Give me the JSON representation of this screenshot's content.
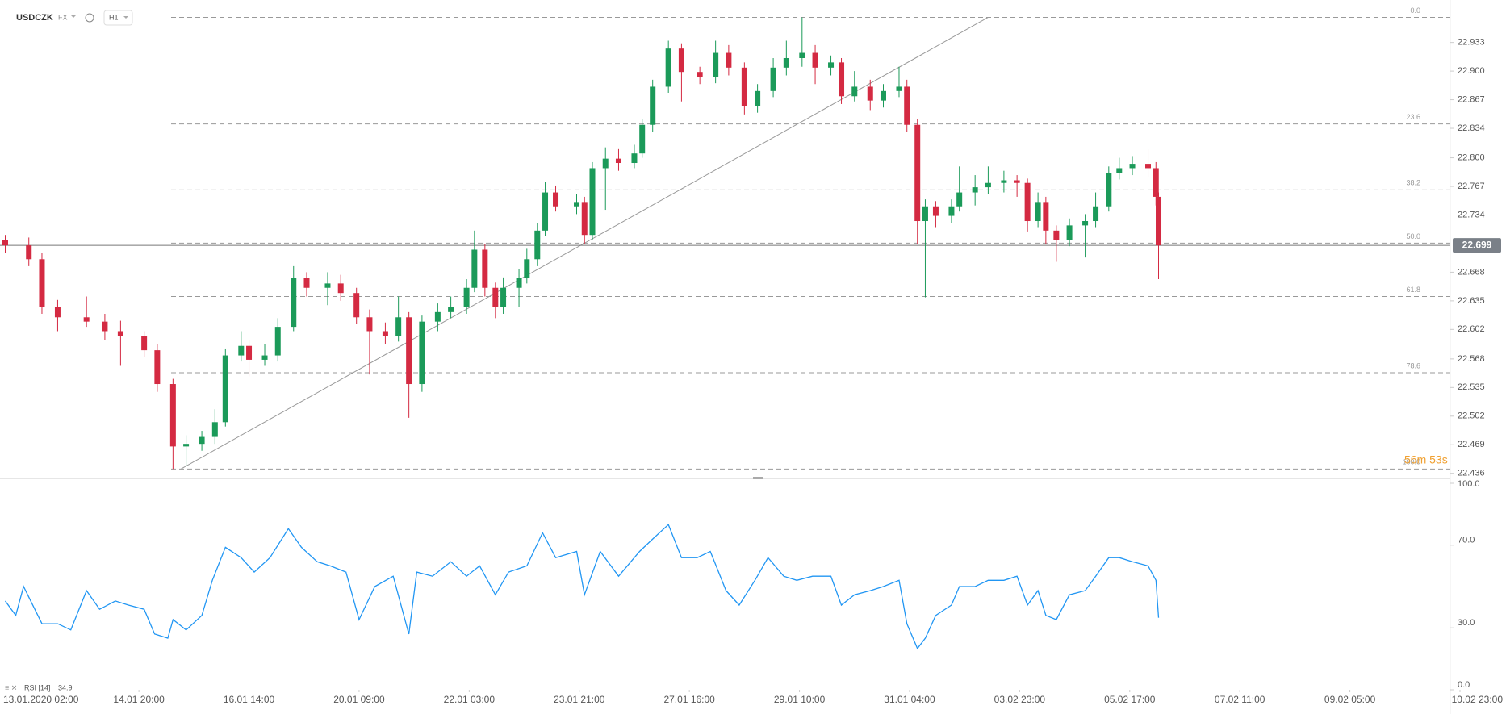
{
  "header": {
    "symbol": "USDCZK",
    "market": "FX",
    "interval": "H1"
  },
  "chart_data": [
    {
      "type": "candlestick",
      "xlim": [
        -11,
        546
      ],
      "ylim": [
        22.432,
        22.982
      ],
      "yticks": [
        22.933,
        {
          "value": 22.9,
          "label": "22.900"
        },
        22.867,
        22.834,
        {
          "value": 22.8,
          "label": "22.800"
        },
        22.767,
        22.734,
        22.668,
        22.635,
        22.602,
        22.568,
        22.535,
        22.502,
        22.469,
        22.436
      ],
      "x": [
        -9,
        0,
        5,
        11,
        22,
        29,
        35,
        44,
        49,
        55,
        60,
        66,
        71,
        75,
        81,
        84,
        90,
        95,
        101,
        106,
        114,
        119,
        125,
        130,
        136,
        141,
        145,
        150,
        156,
        161,
        167,
        170,
        174,
        178,
        181,
        187,
        190,
        194,
        197,
        201,
        209,
        212,
        215,
        220,
        225,
        231,
        234,
        238,
        244,
        249,
        256,
        262,
        267,
        273,
        278,
        284,
        289,
        295,
        300,
        306,
        310,
        315,
        321,
        326,
        332,
        335,
        339,
        342,
        346,
        352,
        355,
        361,
        366,
        372,
        377,
        381,
        385,
        388,
        392,
        397,
        403,
        407,
        412,
        416,
        421,
        427,
        430,
        431
      ],
      "open": [
        22.705,
        22.699,
        22.683,
        22.628,
        22.616,
        22.611,
        22.6,
        22.594,
        22.578,
        22.539,
        22.467,
        22.47,
        22.478,
        22.495,
        22.572,
        22.583,
        22.567,
        22.572,
        22.605,
        22.661,
        22.65,
        22.655,
        22.644,
        22.616,
        22.6,
        22.594,
        22.616,
        22.539,
        22.611,
        22.622,
        22.628,
        22.65,
        22.694,
        22.65,
        22.628,
        22.65,
        22.661,
        22.683,
        22.716,
        22.76,
        22.744,
        22.749,
        22.711,
        22.788,
        22.799,
        22.794,
        22.805,
        22.838,
        22.882,
        22.926,
        22.899,
        22.893,
        22.921,
        22.904,
        22.86,
        22.877,
        22.904,
        22.915,
        22.921,
        22.904,
        22.91,
        22.871,
        22.882,
        22.866,
        22.877,
        22.882,
        22.838,
        22.727,
        22.744,
        22.733,
        22.744,
        22.76,
        22.766,
        22.771,
        22.774,
        22.771,
        22.727,
        22.749,
        22.716,
        22.705,
        22.722,
        22.727,
        22.744,
        22.782,
        22.788,
        22.793,
        22.788,
        22.755
      ],
      "high": [
        22.711,
        22.708,
        22.69,
        22.636,
        22.64,
        22.62,
        22.612,
        22.6,
        22.585,
        22.545,
        22.48,
        22.485,
        22.51,
        22.58,
        22.6,
        22.59,
        22.585,
        22.615,
        22.675,
        22.668,
        22.668,
        22.665,
        22.65,
        22.625,
        22.61,
        22.64,
        22.622,
        22.618,
        22.632,
        22.64,
        22.66,
        22.716,
        22.7,
        22.656,
        22.662,
        22.672,
        22.695,
        22.725,
        22.772,
        22.768,
        22.758,
        22.755,
        22.795,
        22.812,
        22.81,
        22.815,
        22.845,
        22.89,
        22.935,
        22.932,
        22.905,
        22.935,
        22.93,
        22.91,
        22.885,
        22.915,
        22.935,
        22.962,
        22.93,
        22.918,
        22.915,
        22.9,
        22.89,
        22.885,
        22.905,
        22.89,
        22.845,
        22.752,
        22.75,
        22.752,
        22.79,
        22.78,
        22.79,
        22.785,
        22.78,
        22.776,
        22.76,
        22.755,
        22.722,
        22.73,
        22.735,
        22.76,
        22.79,
        22.8,
        22.802,
        22.81,
        22.795,
        22.76
      ],
      "low": [
        22.69,
        22.675,
        22.62,
        22.6,
        22.605,
        22.59,
        22.56,
        22.57,
        22.53,
        22.441,
        22.445,
        22.462,
        22.47,
        22.49,
        22.565,
        22.548,
        22.56,
        22.565,
        22.6,
        22.64,
        22.63,
        22.635,
        22.608,
        22.55,
        22.585,
        22.588,
        22.5,
        22.53,
        22.6,
        22.615,
        22.62,
        22.645,
        22.64,
        22.615,
        22.62,
        22.628,
        22.655,
        22.675,
        22.71,
        22.738,
        22.735,
        22.7,
        22.705,
        22.74,
        22.785,
        22.788,
        22.8,
        22.83,
        22.875,
        22.865,
        22.885,
        22.886,
        22.895,
        22.85,
        22.852,
        22.87,
        22.895,
        22.905,
        22.885,
        22.895,
        22.862,
        22.865,
        22.855,
        22.858,
        22.87,
        22.83,
        22.7,
        22.639,
        22.72,
        22.725,
        22.738,
        22.745,
        22.758,
        22.76,
        22.755,
        22.715,
        22.72,
        22.7,
        22.68,
        22.698,
        22.685,
        22.72,
        22.738,
        22.775,
        22.78,
        22.778,
        22.745,
        22.66
      ],
      "close": [
        22.699,
        22.683,
        22.628,
        22.616,
        22.611,
        22.6,
        22.594,
        22.578,
        22.539,
        22.467,
        22.47,
        22.478,
        22.495,
        22.572,
        22.583,
        22.567,
        22.572,
        22.605,
        22.661,
        22.65,
        22.655,
        22.644,
        22.616,
        22.6,
        22.594,
        22.616,
        22.539,
        22.611,
        22.622,
        22.628,
        22.65,
        22.694,
        22.65,
        22.628,
        22.65,
        22.661,
        22.683,
        22.716,
        22.76,
        22.744,
        22.749,
        22.711,
        22.788,
        22.799,
        22.794,
        22.805,
        22.838,
        22.882,
        22.926,
        22.899,
        22.893,
        22.921,
        22.904,
        22.86,
        22.877,
        22.904,
        22.915,
        22.921,
        22.904,
        22.91,
        22.871,
        22.882,
        22.866,
        22.877,
        22.882,
        22.838,
        22.727,
        22.744,
        22.733,
        22.744,
        22.76,
        22.766,
        22.771,
        22.774,
        22.771,
        22.727,
        22.749,
        22.716,
        22.705,
        22.722,
        22.727,
        22.744,
        22.782,
        22.788,
        22.793,
        22.788,
        22.755,
        22.699
      ],
      "up_color": "#1b9a59",
      "down_color": "#d42a42",
      "last_price": 22.699,
      "countdown": "56m 53s",
      "fibonacci": {
        "levels": [
          {
            "label": "0.0",
            "value": 22.962
          },
          {
            "label": "23.6",
            "value": 22.839
          },
          {
            "label": "38.2",
            "value": 22.763
          },
          {
            "label": "50.0",
            "value": 22.7015
          },
          {
            "label": "61.8",
            "value": 22.64
          },
          {
            "label": "78.6",
            "value": 22.552
          },
          {
            "label": "100.0",
            "value": 22.441
          }
        ]
      },
      "trendline": {
        "x": [
          58,
          366
        ],
        "y": [
          22.441,
          22.962
        ]
      }
    },
    {
      "type": "line",
      "xlim": [
        -11,
        546
      ],
      "ylim": [
        0,
        100
      ],
      "yticks": [
        {
          "value": 0,
          "label": "0.0"
        },
        {
          "value": 30,
          "label": "30.0"
        },
        {
          "value": 70,
          "label": "70.0"
        },
        {
          "value": 100,
          "label": "100.0"
        }
      ],
      "xticks": [
        {
          "value": 0,
          "label": "13.01.2020 02:00"
        },
        {
          "value": 42,
          "label": "14.01 20:00"
        },
        {
          "value": 84,
          "label": "16.01 14:00"
        },
        {
          "value": 126,
          "label": "20.01 09:00"
        },
        {
          "value": 168,
          "label": "22.01 03:00"
        },
        {
          "value": 210,
          "label": "23.01 21:00"
        },
        {
          "value": 252,
          "label": "27.01 16:00"
        },
        {
          "value": 294,
          "label": "29.01 10:00"
        },
        {
          "value": 336,
          "label": "31.01 04:00"
        },
        {
          "value": 378,
          "label": "03.02 23:00"
        },
        {
          "value": 420,
          "label": "05.02 17:00"
        },
        {
          "value": 462,
          "label": "07.02 11:00"
        },
        {
          "value": 504,
          "label": "09.02 05:00"
        },
        {
          "value": 546,
          "label": "10.02 23:00"
        }
      ],
      "series": [
        {
          "name": "RSI [14]",
          "color": "#2196f3",
          "x": [
            -9,
            -5,
            -2,
            5,
            11,
            16,
            22,
            27,
            33,
            38,
            44,
            48,
            53,
            55,
            60,
            66,
            70,
            75,
            81,
            86,
            92,
            99,
            104,
            110,
            115,
            121,
            126,
            132,
            139,
            145,
            148,
            154,
            161,
            167,
            172,
            178,
            183,
            190,
            196,
            201,
            209,
            212,
            218,
            225,
            233,
            238,
            244,
            249,
            255,
            260,
            266,
            271,
            277,
            282,
            288,
            293,
            299,
            306,
            310,
            315,
            321,
            326,
            332,
            335,
            339,
            342,
            346,
            352,
            355,
            361,
            366,
            372,
            377,
            381,
            385,
            388,
            392,
            397,
            403,
            407,
            412,
            416,
            421,
            427,
            430,
            431
          ],
          "values": [
            43,
            36,
            50,
            32,
            32,
            29,
            48,
            39,
            43,
            41,
            39,
            27,
            25,
            34,
            29,
            36,
            53,
            69,
            64,
            57,
            64,
            78,
            69,
            62,
            60,
            57,
            34,
            50,
            55,
            27,
            57,
            55,
            62,
            55,
            60,
            46,
            57,
            60,
            76,
            64,
            67,
            46,
            67,
            55,
            67,
            73,
            80,
            64,
            64,
            67,
            48,
            41,
            53,
            64,
            55,
            53,
            55,
            55,
            41,
            46,
            48,
            50,
            53,
            32,
            20,
            25,
            36,
            41,
            50,
            50,
            53,
            53,
            55,
            41,
            48,
            36,
            34,
            46,
            48,
            55,
            64,
            64,
            62,
            60,
            53,
            34.9
          ]
        }
      ]
    }
  ]
}
